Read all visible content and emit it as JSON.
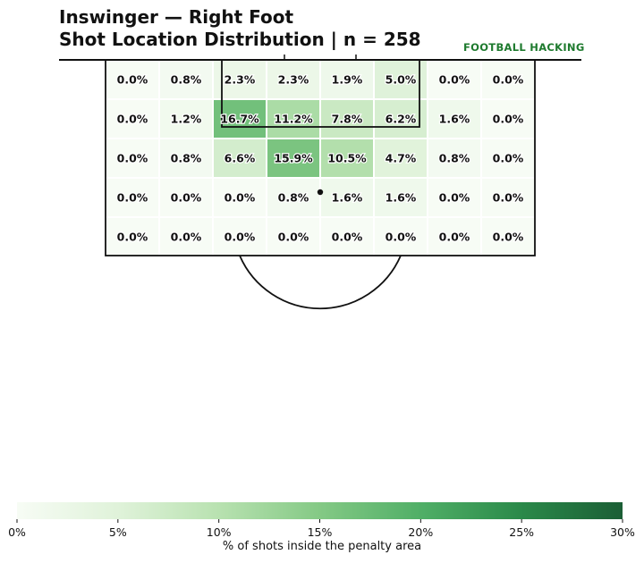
{
  "header": {
    "title_line1": "Inswinger — Right Foot",
    "title_line2": "Shot Location Distribution | n = 258",
    "brand": "FOOTBALL HACKING"
  },
  "chart_data": {
    "type": "heatmap",
    "title": "Inswinger — Right Foot\nShot Location Distribution | n = 258",
    "rows": 5,
    "cols": 8,
    "unit": "%",
    "values": [
      [
        0.0,
        0.8,
        2.3,
        2.3,
        1.9,
        5.0,
        0.0,
        0.0
      ],
      [
        0.0,
        1.2,
        16.7,
        11.2,
        7.8,
        6.2,
        1.6,
        0.0
      ],
      [
        0.0,
        0.8,
        6.6,
        15.9,
        10.5,
        4.7,
        0.8,
        0.0
      ],
      [
        0.0,
        0.0,
        0.0,
        0.8,
        1.6,
        1.6,
        0.0,
        0.0
      ],
      [
        0.0,
        0.0,
        0.0,
        0.0,
        0.0,
        0.0,
        0.0,
        0.0
      ]
    ],
    "colorbar": {
      "min": 0,
      "max": 30,
      "ticks": [
        0,
        5,
        10,
        15,
        20,
        25,
        30
      ],
      "tick_labels": [
        "0%",
        "5%",
        "10%",
        "15%",
        "20%",
        "25%",
        "30%"
      ],
      "label": "% of shots inside the penalty area",
      "color_low": "#f7fcf5",
      "color_high": "#1b5e35"
    }
  }
}
